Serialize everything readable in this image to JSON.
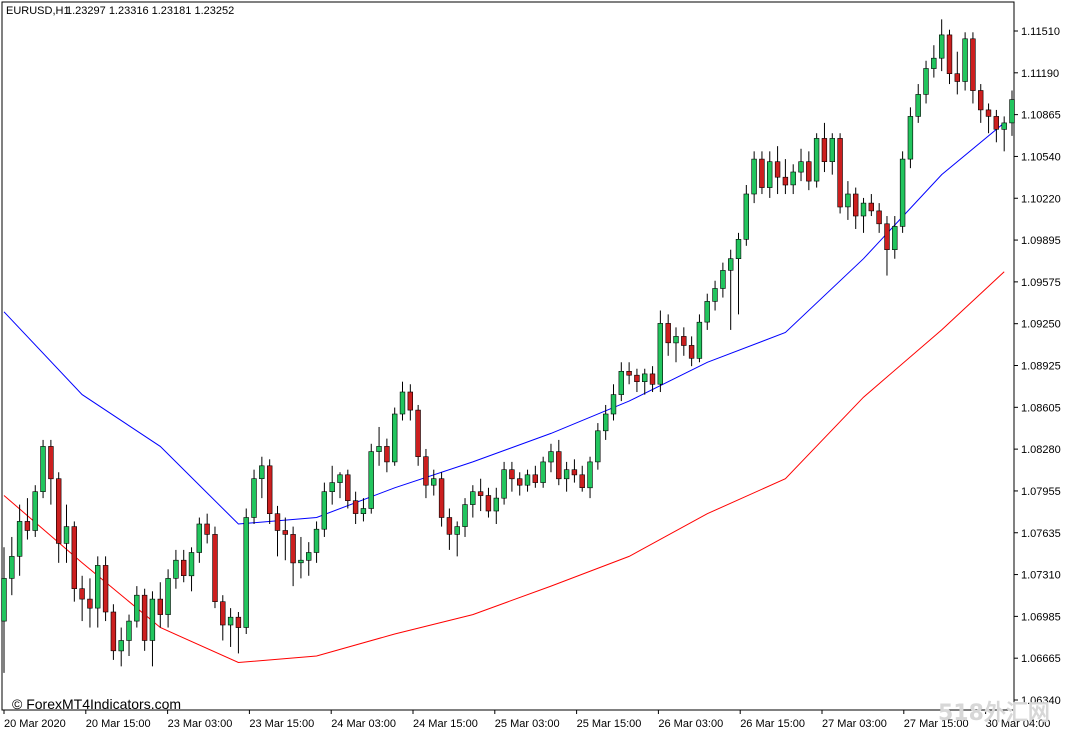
{
  "header": {
    "symbol": "EURUSD,H1",
    "ohlc": "1.23297 1.23316 1.23181 1.23252"
  },
  "copyright": "© ForexMT4Indicators.com",
  "watermark": "518外汇网",
  "chart_data": {
    "type": "candlestick",
    "title": "",
    "xlabel": "",
    "ylabel": "",
    "ylim": [
      1.0634,
      1.1169
    ],
    "y_ticks": [
      "1.11510",
      "1.11190",
      "1.10865",
      "1.10540",
      "1.10220",
      "1.09895",
      "1.09575",
      "1.09250",
      "1.08925",
      "1.08605",
      "1.08280",
      "1.07955",
      "1.07635",
      "1.07310",
      "1.06985",
      "1.06665",
      "1.06340"
    ],
    "x_ticks": [
      "20 Mar 2020",
      "20 Mar 15:00",
      "23 Mar 03:00",
      "23 Mar 15:00",
      "24 Mar 03:00",
      "24 Mar 15:00",
      "25 Mar 03:00",
      "25 Mar 15:00",
      "26 Mar 03:00",
      "26 Mar 15:00",
      "27 Mar 03:00",
      "27 Mar 15:00",
      "30 Mar 04:00"
    ],
    "colors": {
      "bull": "#22c55e",
      "bear": "#cc1f1f",
      "ma_fast": "#0000ff",
      "ma_slow": "#ff0000",
      "grid": "none"
    },
    "candles": [
      [
        1.0695,
        1.0752,
        1.0655,
        1.0728
      ],
      [
        1.0728,
        1.076,
        1.0715,
        1.0745
      ],
      [
        1.0745,
        1.0785,
        1.073,
        1.0772
      ],
      [
        1.0772,
        1.079,
        1.0758,
        1.0765
      ],
      [
        1.0765,
        1.08,
        1.076,
        1.0795
      ],
      [
        1.0795,
        1.0835,
        1.079,
        1.083
      ],
      [
        1.083,
        1.0835,
        1.0785,
        1.0805
      ],
      [
        1.0805,
        1.081,
        1.074,
        1.0755
      ],
      [
        1.0755,
        1.0785,
        1.074,
        1.0768
      ],
      [
        1.0768,
        1.0772,
        1.071,
        1.072
      ],
      [
        1.072,
        1.073,
        1.0695,
        1.0712
      ],
      [
        1.0712,
        1.0728,
        1.069,
        1.0705
      ],
      [
        1.0705,
        1.0745,
        1.069,
        1.0738
      ],
      [
        1.0738,
        1.0745,
        1.0695,
        1.0702
      ],
      [
        1.0702,
        1.0708,
        1.0665,
        1.0672
      ],
      [
        1.0672,
        1.069,
        1.066,
        1.068
      ],
      [
        1.068,
        1.07,
        1.0668,
        1.0695
      ],
      [
        1.0695,
        1.0722,
        1.069,
        1.0715
      ],
      [
        1.0715,
        1.072,
        1.0672,
        1.068
      ],
      [
        1.068,
        1.0718,
        1.066,
        1.0712
      ],
      [
        1.0712,
        1.0725,
        1.069,
        1.07
      ],
      [
        1.07,
        1.0735,
        1.069,
        1.0728
      ],
      [
        1.0728,
        1.075,
        1.072,
        1.0742
      ],
      [
        1.0742,
        1.075,
        1.0725,
        1.073
      ],
      [
        1.073,
        1.0752,
        1.0718,
        1.0748
      ],
      [
        1.0748,
        1.0775,
        1.074,
        1.077
      ],
      [
        1.077,
        1.0778,
        1.0755,
        1.0762
      ],
      [
        1.0762,
        1.0768,
        1.0705,
        1.071
      ],
      [
        1.071,
        1.0715,
        1.068,
        1.0692
      ],
      [
        1.0692,
        1.0705,
        1.0675,
        1.0698
      ],
      [
        1.0698,
        1.0702,
        1.067,
        1.069
      ],
      [
        1.069,
        1.0782,
        1.0685,
        1.0775
      ],
      [
        1.0775,
        1.0812,
        1.077,
        1.0805
      ],
      [
        1.0805,
        1.0822,
        1.079,
        1.0815
      ],
      [
        1.0815,
        1.082,
        1.077,
        1.0778
      ],
      [
        1.0778,
        1.0784,
        1.0745,
        1.0765
      ],
      [
        1.0765,
        1.0775,
        1.0742,
        1.0762
      ],
      [
        1.0762,
        1.0768,
        1.0722,
        1.074
      ],
      [
        1.074,
        1.076,
        1.0728,
        1.0742
      ],
      [
        1.0742,
        1.0756,
        1.073,
        1.0748
      ],
      [
        1.0748,
        1.0772,
        1.074,
        1.0766
      ],
      [
        1.0766,
        1.0802,
        1.076,
        1.0795
      ],
      [
        1.0795,
        1.0815,
        1.0785,
        1.0802
      ],
      [
        1.0802,
        1.081,
        1.079,
        1.0808
      ],
      [
        1.0808,
        1.0812,
        1.0782,
        1.0788
      ],
      [
        1.0788,
        1.0795,
        1.077,
        1.0778
      ],
      [
        1.0778,
        1.079,
        1.0772,
        1.0782
      ],
      [
        1.0782,
        1.0832,
        1.0778,
        1.0826
      ],
      [
        1.0826,
        1.0845,
        1.0815,
        1.083
      ],
      [
        1.083,
        1.0836,
        1.081,
        1.0818
      ],
      [
        1.0818,
        1.086,
        1.0815,
        1.0855
      ],
      [
        1.0855,
        1.088,
        1.085,
        1.0872
      ],
      [
        1.0872,
        1.0878,
        1.085,
        1.0858
      ],
      [
        1.0858,
        1.0862,
        1.0815,
        1.0822
      ],
      [
        1.0822,
        1.0828,
        1.079,
        1.08
      ],
      [
        1.08,
        1.0812,
        1.0792,
        1.0805
      ],
      [
        1.0805,
        1.081,
        1.0768,
        1.0775
      ],
      [
        1.0775,
        1.0782,
        1.075,
        1.0762
      ],
      [
        1.0762,
        1.0772,
        1.0745,
        1.0768
      ],
      [
        1.0768,
        1.079,
        1.076,
        1.0785
      ],
      [
        1.0785,
        1.08,
        1.0775,
        1.0795
      ],
      [
        1.0795,
        1.0805,
        1.078,
        1.0792
      ],
      [
        1.0792,
        1.0798,
        1.0775,
        1.078
      ],
      [
        1.078,
        1.0798,
        1.077,
        1.079
      ],
      [
        1.079,
        1.0818,
        1.0785,
        1.0812
      ],
      [
        1.0812,
        1.0818,
        1.0795,
        1.0805
      ],
      [
        1.0805,
        1.081,
        1.0792,
        1.08
      ],
      [
        1.08,
        1.0812,
        1.0795,
        1.0808
      ],
      [
        1.0808,
        1.0815,
        1.0798,
        1.0802
      ],
      [
        1.0802,
        1.0822,
        1.0798,
        1.0818
      ],
      [
        1.0818,
        1.0832,
        1.081,
        1.0826
      ],
      [
        1.0826,
        1.0835,
        1.08,
        1.0805
      ],
      [
        1.0805,
        1.0818,
        1.0795,
        1.0812
      ],
      [
        1.0812,
        1.082,
        1.0802,
        1.0808
      ],
      [
        1.0808,
        1.0815,
        1.0795,
        1.0798
      ],
      [
        1.0798,
        1.0822,
        1.079,
        1.0818
      ],
      [
        1.0818,
        1.0848,
        1.0812,
        1.0842
      ],
      [
        1.0842,
        1.0862,
        1.0835,
        1.0855
      ],
      [
        1.0855,
        1.0878,
        1.085,
        1.087
      ],
      [
        1.087,
        1.0895,
        1.0865,
        1.0888
      ],
      [
        1.0888,
        1.0895,
        1.0878,
        1.0885
      ],
      [
        1.0885,
        1.089,
        1.0872,
        1.088
      ],
      [
        1.088,
        1.089,
        1.087,
        1.0886
      ],
      [
        1.0886,
        1.0892,
        1.0872,
        1.0878
      ],
      [
        1.0878,
        1.0935,
        1.0872,
        1.0925
      ],
      [
        1.0925,
        1.0932,
        1.09,
        1.091
      ],
      [
        1.091,
        1.0922,
        1.0895,
        1.0915
      ],
      [
        1.0915,
        1.0922,
        1.09,
        1.0908
      ],
      [
        1.0908,
        1.0915,
        1.0892,
        1.0898
      ],
      [
        1.0898,
        1.0932,
        1.0895,
        1.0926
      ],
      [
        1.0926,
        1.0948,
        1.092,
        1.0942
      ],
      [
        1.0942,
        1.0958,
        1.0935,
        1.0952
      ],
      [
        1.0952,
        1.0972,
        1.0945,
        1.0966
      ],
      [
        1.0966,
        1.0982,
        1.092,
        1.0975
      ],
      [
        1.0975,
        1.0995,
        1.0932,
        1.099
      ],
      [
        1.099,
        1.1032,
        1.0985,
        1.1025
      ],
      [
        1.1025,
        1.1058,
        1.1018,
        1.1052
      ],
      [
        1.1052,
        1.1058,
        1.1025,
        1.103
      ],
      [
        1.103,
        1.1058,
        1.1022,
        1.105
      ],
      [
        1.105,
        1.1062,
        1.1025,
        1.1038
      ],
      [
        1.1038,
        1.1052,
        1.1025,
        1.1032
      ],
      [
        1.1032,
        1.1048,
        1.1025,
        1.1042
      ],
      [
        1.1042,
        1.106,
        1.1035,
        1.105
      ],
      [
        1.105,
        1.1058,
        1.1028,
        1.1035
      ],
      [
        1.1035,
        1.1072,
        1.103,
        1.1068
      ],
      [
        1.1068,
        1.108,
        1.1042,
        1.105
      ],
      [
        1.105,
        1.1072,
        1.104,
        1.1068
      ],
      [
        1.1068,
        1.1072,
        1.101,
        1.1015
      ],
      [
        1.1015,
        1.1035,
        1.1005,
        1.1025
      ],
      [
        1.1025,
        1.103,
        1.0998,
        1.1008
      ],
      [
        1.1008,
        1.1022,
        1.0995,
        1.1018
      ],
      [
        1.1018,
        1.1025,
        1.1008,
        1.1012
      ],
      [
        1.1012,
        1.1018,
        1.0995,
        1.1002
      ],
      [
        1.1002,
        1.1008,
        1.0962,
        1.0982
      ],
      [
        1.0982,
        1.1008,
        1.0975,
        1.1
      ],
      [
        1.1,
        1.1058,
        1.0995,
        1.1052
      ],
      [
        1.1052,
        1.1092,
        1.1045,
        1.1085
      ],
      [
        1.1085,
        1.111,
        1.108,
        1.1102
      ],
      [
        1.1102,
        1.1128,
        1.1095,
        1.1122
      ],
      [
        1.1122,
        1.114,
        1.1115,
        1.113
      ],
      [
        1.113,
        1.116,
        1.112,
        1.1148
      ],
      [
        1.1148,
        1.1152,
        1.111,
        1.1118
      ],
      [
        1.1118,
        1.1135,
        1.1102,
        1.1112
      ],
      [
        1.1112,
        1.115,
        1.1105,
        1.1145
      ],
      [
        1.1145,
        1.115,
        1.1095,
        1.1105
      ],
      [
        1.1105,
        1.111,
        1.108,
        1.109
      ],
      [
        1.109,
        1.1095,
        1.1072,
        1.1085
      ],
      [
        1.1085,
        1.109,
        1.1065,
        1.1075
      ],
      [
        1.1075,
        1.1085,
        1.1058,
        1.108
      ],
      [
        1.108,
        1.1105,
        1.107,
        1.1098
      ]
    ],
    "ma_fast": [
      [
        0,
        1.0934
      ],
      [
        10,
        1.087
      ],
      [
        20,
        1.083
      ],
      [
        30,
        1.077
      ],
      [
        40,
        1.0775
      ],
      [
        50,
        1.0798
      ],
      [
        60,
        1.0818
      ],
      [
        70,
        1.084
      ],
      [
        80,
        1.0865
      ],
      [
        90,
        1.0895
      ],
      [
        100,
        1.0918
      ],
      [
        110,
        1.0975
      ],
      [
        120,
        1.104
      ],
      [
        128,
        1.108
      ]
    ],
    "ma_slow": [
      [
        0,
        1.0792
      ],
      [
        10,
        1.074
      ],
      [
        20,
        1.069
      ],
      [
        30,
        1.0663
      ],
      [
        40,
        1.0668
      ],
      [
        50,
        1.0685
      ],
      [
        60,
        1.07
      ],
      [
        70,
        1.0722
      ],
      [
        80,
        1.0745
      ],
      [
        90,
        1.0778
      ],
      [
        100,
        1.0805
      ],
      [
        110,
        1.0868
      ],
      [
        120,
        1.092
      ],
      [
        128,
        1.0965
      ]
    ]
  }
}
